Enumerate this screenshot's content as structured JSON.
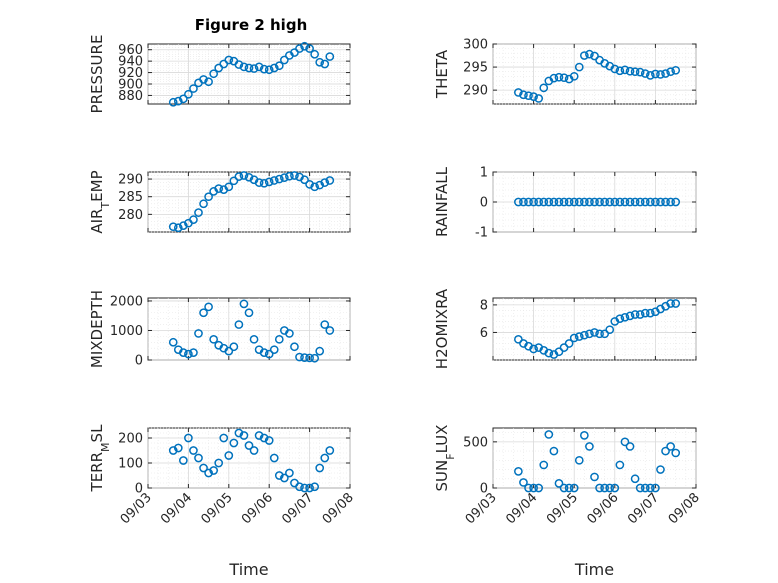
{
  "figure_title": "Figure 2 high",
  "colors": {
    "marker": "#0072bd",
    "axis": "#262626"
  },
  "chart_data": [
    {
      "type": "scatter",
      "title": "Figure 2 high",
      "xlabel": "",
      "ylabel": "PRESSURE",
      "xlim": [
        "09/03",
        "09/08"
      ],
      "ylim": [
        865,
        970
      ],
      "yticks": [
        880,
        900,
        920,
        940,
        960
      ],
      "x": [
        "09/03 15:00",
        "09/03 18:00",
        "09/03 21:00",
        "09/04 00:00",
        "09/04 03:00",
        "09/04 06:00",
        "09/04 09:00",
        "09/04 12:00",
        "09/04 15:00",
        "09/04 18:00",
        "09/04 21:00",
        "09/05 00:00",
        "09/05 03:00",
        "09/05 06:00",
        "09/05 09:00",
        "09/05 12:00",
        "09/05 15:00",
        "09/05 18:00",
        "09/05 21:00",
        "09/06 00:00",
        "09/06 03:00",
        "09/06 06:00",
        "09/06 09:00",
        "09/06 12:00",
        "09/06 15:00",
        "09/06 18:00",
        "09/06 21:00",
        "09/07 00:00",
        "09/07 03:00",
        "09/07 06:00",
        "09/07 09:00",
        "09/07 12:00"
      ],
      "y": [
        868,
        870,
        874,
        882,
        892,
        902,
        908,
        904,
        918,
        928,
        935,
        942,
        940,
        934,
        930,
        928,
        927,
        930,
        926,
        925,
        928,
        932,
        942,
        950,
        955,
        962,
        966,
        962,
        952,
        938,
        935,
        948
      ],
      "grid": true,
      "legend": "none"
    },
    {
      "type": "scatter",
      "title": "",
      "xlabel": "",
      "ylabel": "THETA",
      "xlim": [
        "09/03",
        "09/08"
      ],
      "ylim": [
        287,
        300
      ],
      "yticks": [
        290,
        295,
        300
      ],
      "x": [
        "09/03 15:00",
        "09/03 18:00",
        "09/03 21:00",
        "09/04 00:00",
        "09/04 03:00",
        "09/04 06:00",
        "09/04 09:00",
        "09/04 12:00",
        "09/04 15:00",
        "09/04 18:00",
        "09/04 21:00",
        "09/05 00:00",
        "09/05 03:00",
        "09/05 06:00",
        "09/05 09:00",
        "09/05 12:00",
        "09/05 15:00",
        "09/05 18:00",
        "09/05 21:00",
        "09/06 00:00",
        "09/06 03:00",
        "09/06 06:00",
        "09/06 09:00",
        "09/06 12:00",
        "09/06 15:00",
        "09/06 18:00",
        "09/06 21:00",
        "09/07 00:00",
        "09/07 03:00",
        "09/07 06:00",
        "09/07 09:00",
        "09/07 12:00"
      ],
      "y": [
        289.5,
        289.0,
        288.8,
        288.6,
        288.2,
        290.5,
        292.0,
        292.6,
        292.8,
        292.7,
        292.4,
        293.0,
        295.0,
        297.5,
        297.8,
        297.4,
        296.5,
        295.8,
        295.2,
        294.6,
        294.2,
        294.4,
        294.1,
        294.0,
        293.9,
        293.6,
        293.2,
        293.5,
        293.4,
        293.6,
        294.0,
        294.3
      ],
      "grid": true,
      "legend": "none"
    },
    {
      "type": "scatter",
      "title": "",
      "xlabel": "",
      "ylabel": "AIR_TEMP",
      "xlim": [
        "09/03",
        "09/08"
      ],
      "ylim": [
        275,
        292
      ],
      "yticks": [
        280,
        285,
        290
      ],
      "x": [
        "09/03 15:00",
        "09/03 18:00",
        "09/03 21:00",
        "09/04 00:00",
        "09/04 03:00",
        "09/04 06:00",
        "09/04 09:00",
        "09/04 12:00",
        "09/04 15:00",
        "09/04 18:00",
        "09/04 21:00",
        "09/05 00:00",
        "09/05 03:00",
        "09/05 06:00",
        "09/05 09:00",
        "09/05 12:00",
        "09/05 15:00",
        "09/05 18:00",
        "09/05 21:00",
        "09/06 00:00",
        "09/06 03:00",
        "09/06 06:00",
        "09/06 09:00",
        "09/06 12:00",
        "09/06 15:00",
        "09/06 18:00",
        "09/06 21:00",
        "09/07 00:00",
        "09/07 03:00",
        "09/07 06:00",
        "09/07 09:00",
        "09/07 12:00"
      ],
      "y": [
        276.5,
        276.2,
        276.8,
        277.5,
        278.5,
        280.5,
        283.0,
        285.0,
        286.5,
        287.3,
        287.0,
        287.8,
        289.5,
        290.7,
        291.0,
        290.5,
        289.8,
        289.0,
        288.8,
        289.2,
        289.6,
        290.0,
        290.4,
        290.8,
        291.0,
        290.6,
        289.8,
        288.5,
        287.8,
        288.3,
        289.0,
        289.6
      ],
      "grid": true,
      "legend": "none"
    },
    {
      "type": "scatter",
      "title": "",
      "xlabel": "",
      "ylabel": "RAINFALL",
      "xlim": [
        "09/03",
        "09/08"
      ],
      "ylim": [
        -1,
        1
      ],
      "yticks": [
        -1,
        0,
        1
      ],
      "x": [
        "09/03 15:00",
        "09/03 18:00",
        "09/03 21:00",
        "09/04 00:00",
        "09/04 03:00",
        "09/04 06:00",
        "09/04 09:00",
        "09/04 12:00",
        "09/04 15:00",
        "09/04 18:00",
        "09/04 21:00",
        "09/05 00:00",
        "09/05 03:00",
        "09/05 06:00",
        "09/05 09:00",
        "09/05 12:00",
        "09/05 15:00",
        "09/05 18:00",
        "09/05 21:00",
        "09/06 00:00",
        "09/06 03:00",
        "09/06 06:00",
        "09/06 09:00",
        "09/06 12:00",
        "09/06 15:00",
        "09/06 18:00",
        "09/06 21:00",
        "09/07 00:00",
        "09/07 03:00",
        "09/07 06:00",
        "09/07 09:00",
        "09/07 12:00"
      ],
      "y": [
        0,
        0,
        0,
        0,
        0,
        0,
        0,
        0,
        0,
        0,
        0,
        0,
        0,
        0,
        0,
        0,
        0,
        0,
        0,
        0,
        0,
        0,
        0,
        0,
        0,
        0,
        0,
        0,
        0,
        0,
        0,
        0
      ],
      "grid": true,
      "legend": "none"
    },
    {
      "type": "scatter",
      "title": "",
      "xlabel": "",
      "ylabel": "MIXDEPTH",
      "xlim": [
        "09/03",
        "09/08"
      ],
      "ylim": [
        0,
        2100
      ],
      "yticks": [
        0,
        1000,
        2000
      ],
      "x": [
        "09/03 15:00",
        "09/03 18:00",
        "09/03 21:00",
        "09/04 00:00",
        "09/04 03:00",
        "09/04 06:00",
        "09/04 09:00",
        "09/04 12:00",
        "09/04 15:00",
        "09/04 18:00",
        "09/04 21:00",
        "09/05 00:00",
        "09/05 03:00",
        "09/05 06:00",
        "09/05 09:00",
        "09/05 12:00",
        "09/05 15:00",
        "09/05 18:00",
        "09/05 21:00",
        "09/06 00:00",
        "09/06 03:00",
        "09/06 06:00",
        "09/06 09:00",
        "09/06 12:00",
        "09/06 15:00",
        "09/06 18:00",
        "09/06 21:00",
        "09/07 00:00",
        "09/07 03:00",
        "09/07 06:00",
        "09/07 09:00",
        "09/07 12:00"
      ],
      "y": [
        600,
        350,
        250,
        200,
        250,
        900,
        1600,
        1800,
        700,
        500,
        400,
        300,
        450,
        1200,
        1900,
        1600,
        700,
        350,
        250,
        200,
        350,
        700,
        1000,
        900,
        450,
        100,
        80,
        70,
        60,
        300,
        1200,
        1000
      ],
      "grid": true,
      "legend": "none"
    },
    {
      "type": "scatter",
      "title": "",
      "xlabel": "",
      "ylabel": "H2OMIXRA",
      "xlim": [
        "09/03",
        "09/08"
      ],
      "ylim": [
        4,
        8.5
      ],
      "yticks": [
        6,
        8
      ],
      "x": [
        "09/03 15:00",
        "09/03 18:00",
        "09/03 21:00",
        "09/04 00:00",
        "09/04 03:00",
        "09/04 06:00",
        "09/04 09:00",
        "09/04 12:00",
        "09/04 15:00",
        "09/04 18:00",
        "09/04 21:00",
        "09/05 00:00",
        "09/05 03:00",
        "09/05 06:00",
        "09/05 09:00",
        "09/05 12:00",
        "09/05 15:00",
        "09/05 18:00",
        "09/05 21:00",
        "09/06 00:00",
        "09/06 03:00",
        "09/06 06:00",
        "09/06 09:00",
        "09/06 12:00",
        "09/06 15:00",
        "09/06 18:00",
        "09/06 21:00",
        "09/07 00:00",
        "09/07 03:00",
        "09/07 06:00",
        "09/07 09:00",
        "09/07 12:00"
      ],
      "y": [
        5.5,
        5.2,
        5.0,
        4.8,
        4.9,
        4.7,
        4.5,
        4.4,
        4.6,
        4.9,
        5.2,
        5.6,
        5.7,
        5.8,
        5.9,
        6.0,
        5.9,
        5.9,
        6.2,
        6.8,
        7.0,
        7.1,
        7.2,
        7.3,
        7.3,
        7.4,
        7.4,
        7.5,
        7.7,
        7.9,
        8.1,
        8.1
      ],
      "grid": true,
      "legend": "none"
    },
    {
      "type": "scatter",
      "title": "",
      "xlabel": "Time",
      "ylabel": "TERR_MSL",
      "xlim": [
        "09/03",
        "09/08"
      ],
      "ylim": [
        0,
        240
      ],
      "yticks": [
        0,
        100,
        200
      ],
      "xticks": [
        "09/03",
        "09/04",
        "09/05",
        "09/06",
        "09/07",
        "09/08"
      ],
      "x": [
        "09/03 15:00",
        "09/03 18:00",
        "09/03 21:00",
        "09/04 00:00",
        "09/04 03:00",
        "09/04 06:00",
        "09/04 09:00",
        "09/04 12:00",
        "09/04 15:00",
        "09/04 18:00",
        "09/04 21:00",
        "09/05 00:00",
        "09/05 03:00",
        "09/05 06:00",
        "09/05 09:00",
        "09/05 12:00",
        "09/05 15:00",
        "09/05 18:00",
        "09/05 21:00",
        "09/06 00:00",
        "09/06 03:00",
        "09/06 06:00",
        "09/06 09:00",
        "09/06 12:00",
        "09/06 15:00",
        "09/06 18:00",
        "09/06 21:00",
        "09/07 00:00",
        "09/07 03:00",
        "09/07 06:00",
        "09/07 09:00",
        "09/07 12:00"
      ],
      "y": [
        150,
        160,
        110,
        200,
        150,
        120,
        80,
        60,
        70,
        100,
        200,
        130,
        180,
        220,
        210,
        170,
        150,
        210,
        200,
        190,
        120,
        50,
        40,
        60,
        20,
        5,
        0,
        0,
        5,
        80,
        120,
        150
      ],
      "grid": true,
      "legend": "none"
    },
    {
      "type": "scatter",
      "title": "",
      "xlabel": "Time",
      "ylabel": "SUN_FLUX",
      "xlim": [
        "09/03",
        "09/08"
      ],
      "ylim": [
        0,
        650
      ],
      "yticks": [
        0,
        500
      ],
      "xticks": [
        "09/03",
        "09/04",
        "09/05",
        "09/06",
        "09/07",
        "09/08"
      ],
      "x": [
        "09/03 15:00",
        "09/03 18:00",
        "09/03 21:00",
        "09/04 00:00",
        "09/04 03:00",
        "09/04 06:00",
        "09/04 09:00",
        "09/04 12:00",
        "09/04 15:00",
        "09/04 18:00",
        "09/04 21:00",
        "09/05 00:00",
        "09/05 03:00",
        "09/05 06:00",
        "09/05 09:00",
        "09/05 12:00",
        "09/05 15:00",
        "09/05 18:00",
        "09/05 21:00",
        "09/06 00:00",
        "09/06 03:00",
        "09/06 06:00",
        "09/06 09:00",
        "09/06 12:00",
        "09/06 15:00",
        "09/06 18:00",
        "09/06 21:00",
        "09/07 00:00",
        "09/07 03:00",
        "09/07 06:00",
        "09/07 09:00",
        "09/07 12:00"
      ],
      "y": [
        180,
        60,
        0,
        0,
        0,
        250,
        580,
        400,
        50,
        0,
        0,
        0,
        300,
        570,
        450,
        120,
        0,
        0,
        0,
        0,
        250,
        500,
        450,
        100,
        0,
        0,
        0,
        0,
        200,
        400,
        450,
        380
      ],
      "grid": true,
      "legend": "none"
    }
  ]
}
